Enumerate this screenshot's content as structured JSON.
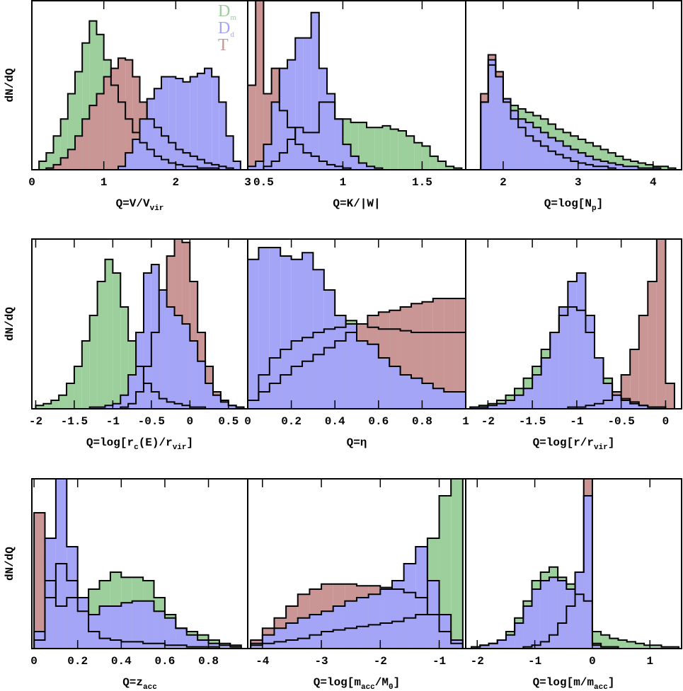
{
  "chart_data": [
    {
      "type": "histogram",
      "xlabel": [
        "Q=V/V",
        "vir"
      ],
      "ylabel": "dN/dQ",
      "legend": "upper right",
      "xlim": [
        0,
        3
      ],
      "ylim": [
        0,
        100
      ],
      "xticks": [
        0,
        1,
        2,
        3
      ],
      "bins": [
        0.1,
        0.2,
        0.3,
        0.4,
        0.5,
        0.6,
        0.7,
        0.8,
        0.9,
        1.0,
        1.1,
        1.2,
        1.3,
        1.4,
        1.5,
        1.6,
        1.7,
        1.8,
        1.9,
        2.0,
        2.1,
        2.2,
        2.3,
        2.4,
        2.5,
        2.6,
        2.7,
        2.8,
        2.9
      ],
      "series": [
        {
          "name": [
            "D",
            "m"
          ],
          "color": "#9ccf9c",
          "values": [
            5,
            10,
            20,
            30,
            45,
            58,
            75,
            88,
            80,
            65,
            50,
            40,
            30,
            22,
            16,
            12,
            8,
            6,
            4,
            3,
            2,
            2,
            1,
            1,
            1,
            0,
            0,
            0
          ]
        },
        {
          "name": [
            "D",
            "d"
          ],
          "color": "#a5a5f7",
          "values": [
            0,
            0,
            0,
            0,
            0,
            0,
            0,
            0,
            0,
            0,
            0,
            2,
            10,
            18,
            30,
            42,
            48,
            55,
            55,
            54,
            52,
            55,
            57,
            60,
            55,
            40,
            20,
            5
          ]
        },
        {
          "name": [
            "T"
          ],
          "color": "#c99595",
          "values": [
            0,
            1,
            3,
            7,
            12,
            20,
            30,
            38,
            45,
            55,
            60,
            66,
            65,
            55,
            40,
            30,
            25,
            20,
            16,
            12,
            10,
            8,
            6,
            4,
            3,
            2,
            1,
            0
          ]
        }
      ]
    },
    {
      "type": "histogram",
      "xlabel": [
        "Q=K/|W|"
      ],
      "xlim": [
        0.4,
        1.775
      ],
      "ylim": [
        0,
        100
      ],
      "xticks": [
        0.5,
        1,
        1.5
      ],
      "bins": [
        0.4,
        0.45,
        0.5,
        0.55,
        0.6,
        0.65,
        0.7,
        0.75,
        0.8,
        0.85,
        0.9,
        0.95,
        1.0,
        1.05,
        1.1,
        1.15,
        1.2,
        1.25,
        1.3,
        1.35,
        1.4,
        1.45,
        1.5,
        1.55,
        1.6,
        1.65,
        1.7,
        1.75
      ],
      "series": [
        {
          "color": "#9ccf9c",
          "values": [
            0,
            0,
            2,
            5,
            10,
            18,
            25,
            22,
            22,
            40,
            40,
            30,
            30,
            28,
            28,
            25,
            25,
            26,
            24,
            23,
            20,
            16,
            14,
            8,
            5,
            2,
            1
          ]
        },
        {
          "color": "#a5a5f7",
          "values": [
            2,
            5,
            15,
            40,
            60,
            65,
            78,
            78,
            93,
            60,
            45,
            30,
            15,
            8,
            4,
            2,
            1,
            0,
            0,
            0,
            0,
            0,
            0,
            0,
            0,
            0,
            0
          ]
        },
        {
          "color": "#c99595",
          "values": [
            50,
            100,
            45,
            60,
            35,
            25,
            15,
            10,
            8,
            5,
            3,
            2,
            1,
            0,
            0,
            0,
            0,
            0,
            0,
            0,
            0,
            0,
            0,
            0,
            0,
            0,
            0
          ]
        }
      ]
    },
    {
      "type": "histogram",
      "xlabel": [
        "Q=log[N",
        "p",
        "]"
      ],
      "xlim": [
        1.5,
        4.38
      ],
      "ylim": [
        0,
        100
      ],
      "xticks": [
        2,
        3,
        4
      ],
      "bins": [
        1.7,
        1.8,
        1.9,
        2.0,
        2.1,
        2.2,
        2.3,
        2.4,
        2.5,
        2.6,
        2.7,
        2.8,
        2.9,
        3.0,
        3.1,
        3.2,
        3.3,
        3.4,
        3.5,
        3.6,
        3.7,
        3.8,
        3.9,
        4.0,
        4.1,
        4.2,
        4.3
      ],
      "series": [
        {
          "color": "#9ccf9c",
          "values": [
            40,
            62,
            55,
            42,
            38,
            36,
            34,
            32,
            30,
            27,
            24,
            22,
            20,
            18,
            16,
            14,
            12,
            10,
            8,
            6,
            5,
            4,
            3,
            2,
            2,
            1
          ]
        },
        {
          "color": "#a5a5f7",
          "values": [
            40,
            65,
            55,
            42,
            35,
            30,
            28,
            25,
            22,
            19,
            17,
            14,
            12,
            10,
            8,
            6,
            5,
            4,
            3,
            2,
            2,
            1,
            1,
            1,
            0,
            0
          ]
        },
        {
          "color": "#c99595",
          "values": [
            45,
            68,
            58,
            40,
            30,
            25,
            20,
            17,
            14,
            11,
            9,
            7,
            5,
            4,
            3,
            2,
            2,
            1,
            0,
            0,
            0,
            0,
            0,
            0,
            0,
            0
          ]
        }
      ]
    },
    {
      "type": "histogram",
      "xlabel": [
        "Q=log[r",
        "c",
        "(E)/r",
        "vir",
        "]"
      ],
      "ylabel": "dN/dQ",
      "xlim": [
        -2.05,
        0.75
      ],
      "ylim": [
        0,
        100
      ],
      "xticks": [
        -2,
        -1.5,
        -1,
        -0.5,
        0,
        0.5
      ],
      "bins": [
        -2.0,
        -1.9,
        -1.8,
        -1.7,
        -1.6,
        -1.5,
        -1.4,
        -1.3,
        -1.2,
        -1.1,
        -1.0,
        -0.9,
        -0.8,
        -0.7,
        -0.6,
        -0.5,
        -0.4,
        -0.3,
        -0.2,
        -0.1,
        0,
        0.1,
        0.2,
        0.3,
        0.4,
        0.5,
        0.6,
        0.7
      ],
      "series": [
        {
          "color": "#9ccf9c",
          "values": [
            2,
            3,
            5,
            8,
            15,
            25,
            40,
            55,
            75,
            88,
            80,
            60,
            40,
            25,
            15,
            10,
            6,
            4,
            3,
            2,
            1,
            1,
            0,
            0,
            0,
            0,
            0
          ]
        },
        {
          "color": "#a5a5f7",
          "values": [
            0,
            0,
            0,
            0,
            0,
            0,
            0,
            1,
            1,
            2,
            3,
            8,
            20,
            45,
            80,
            85,
            70,
            60,
            55,
            50,
            40,
            28,
            15,
            8,
            4,
            2,
            1
          ]
        },
        {
          "color": "#c99595",
          "values": [
            0,
            0,
            0,
            0,
            0,
            0,
            0,
            0,
            0,
            0,
            0,
            1,
            3,
            10,
            25,
            45,
            70,
            90,
            100,
            98,
            75,
            45,
            25,
            10,
            5,
            2,
            1
          ]
        }
      ]
    },
    {
      "type": "histogram",
      "xlabel": [
        "Q=η"
      ],
      "xlim": [
        0,
        1
      ],
      "ylim": [
        0,
        100
      ],
      "xticks": [
        0,
        0.2,
        0.4,
        0.6,
        0.8,
        1
      ],
      "bins": [
        0,
        0.05,
        0.1,
        0.15,
        0.2,
        0.25,
        0.3,
        0.35,
        0.4,
        0.45,
        0.5,
        0.55,
        0.6,
        0.65,
        0.7,
        0.75,
        0.8,
        0.85,
        0.9,
        0.95,
        1
      ],
      "series": [
        {
          "color": "#9ccf9c",
          "values": [
            5,
            20,
            30,
            35,
            40,
            42,
            45,
            47,
            48,
            52,
            50,
            48,
            47,
            47,
            46,
            45,
            45,
            45,
            45,
            45
          ]
        },
        {
          "color": "#a5a5f7",
          "values": [
            88,
            95,
            95,
            90,
            88,
            92,
            82,
            70,
            55,
            50,
            40,
            38,
            30,
            25,
            20,
            18,
            15,
            12,
            10,
            10
          ]
        },
        {
          "color": "#c99595",
          "values": [
            5,
            10,
            15,
            20,
            25,
            28,
            32,
            36,
            40,
            45,
            50,
            55,
            57,
            58,
            60,
            62,
            63,
            65,
            65,
            65
          ]
        }
      ]
    },
    {
      "type": "histogram",
      "xlabel": [
        "Q=log[r/r",
        "vir",
        "]"
      ],
      "xlim": [
        -2.25,
        0.18
      ],
      "ylim": [
        0,
        100
      ],
      "xticks": [
        -2,
        -1.5,
        -1,
        -0.5,
        0
      ],
      "bins": [
        -2.2,
        -2.1,
        -2.0,
        -1.9,
        -1.8,
        -1.7,
        -1.6,
        -1.5,
        -1.4,
        -1.3,
        -1.2,
        -1.1,
        -1.0,
        -0.9,
        -0.8,
        -0.7,
        -0.6,
        -0.5,
        -0.4,
        -0.3,
        -0.2,
        -0.1,
        0,
        0.1
      ],
      "series": [
        {
          "color": "#9ccf9c",
          "values": [
            1,
            2,
            3,
            5,
            8,
            12,
            18,
            25,
            35,
            45,
            55,
            60,
            58,
            45,
            30,
            18,
            10,
            6,
            4,
            2,
            1,
            1,
            0
          ]
        },
        {
          "color": "#a5a5f7",
          "values": [
            1,
            1,
            2,
            3,
            5,
            8,
            12,
            20,
            30,
            45,
            60,
            75,
            80,
            55,
            30,
            15,
            8,
            5,
            3,
            2,
            1,
            1,
            0
          ]
        },
        {
          "color": "#c99595",
          "values": [
            0,
            0,
            0,
            0,
            0,
            0,
            0,
            0,
            0,
            0,
            0,
            1,
            1,
            2,
            3,
            5,
            10,
            20,
            35,
            55,
            75,
            100,
            15
          ]
        }
      ]
    },
    {
      "type": "histogram",
      "xlabel": [
        "Q=z",
        "acc"
      ],
      "ylabel": "dN/dQ",
      "xlim": [
        -0.01,
        0.98
      ],
      "ylim": [
        0,
        100
      ],
      "xticks": [
        0,
        0.2,
        0.4,
        0.6,
        0.8
      ],
      "bins": [
        0,
        0.05,
        0.1,
        0.15,
        0.2,
        0.25,
        0.3,
        0.35,
        0.4,
        0.45,
        0.5,
        0.55,
        0.6,
        0.65,
        0.7,
        0.75,
        0.8,
        0.85,
        0.9,
        0.95
      ],
      "series": [
        {
          "color": "#9ccf9c",
          "values": [
            5,
            30,
            50,
            40,
            30,
            35,
            40,
            45,
            42,
            42,
            40,
            30,
            20,
            12,
            10,
            8,
            5,
            3,
            2
          ]
        },
        {
          "color": "#a5a5f7",
          "values": [
            10,
            65,
            100,
            60,
            30,
            20,
            25,
            25,
            27,
            28,
            28,
            22,
            18,
            12,
            8,
            5,
            3,
            2,
            1
          ]
        },
        {
          "color": "#c99595",
          "values": [
            80,
            40,
            25,
            30,
            22,
            10,
            6,
            5,
            4,
            4,
            3,
            3,
            2,
            2,
            1,
            1,
            1,
            0,
            0
          ]
        }
      ]
    },
    {
      "type": "histogram",
      "xlabel": [
        "Q=log[m",
        "acc",
        "/M",
        "0",
        "]"
      ],
      "xlim": [
        -4.25,
        -0.55
      ],
      "ylim": [
        0,
        100
      ],
      "xticks": [
        -4,
        -3,
        -2,
        -1
      ],
      "bins": [
        -4.2,
        -4.0,
        -3.8,
        -3.6,
        -3.4,
        -3.2,
        -3.0,
        -2.8,
        -2.6,
        -2.4,
        -2.2,
        -2.0,
        -1.8,
        -1.6,
        -1.4,
        -1.2,
        -1.0,
        -0.8,
        -0.6
      ],
      "series": [
        {
          "color": "#9ccf9c",
          "values": [
            2,
            3,
            4,
            5,
            6,
            8,
            10,
            11,
            12,
            13,
            14,
            15,
            16,
            18,
            20,
            65,
            90,
            100
          ]
        },
        {
          "color": "#a5a5f7",
          "values": [
            3,
            8,
            12,
            15,
            18,
            20,
            22,
            25,
            28,
            30,
            32,
            35,
            40,
            50,
            60,
            40,
            20,
            5
          ]
        },
        {
          "color": "#c99595",
          "values": [
            5,
            12,
            18,
            25,
            32,
            35,
            38,
            38,
            38,
            37,
            37,
            36,
            35,
            33,
            30,
            20,
            10,
            3
          ]
        }
      ]
    },
    {
      "type": "histogram",
      "xlabel": [
        "Q=log[m/m",
        "acc",
        "]"
      ],
      "xlim": [
        -2.2,
        1.55
      ],
      "ylim": [
        0,
        100
      ],
      "xticks": [
        -2,
        -1,
        0,
        1
      ],
      "bins": [
        -2.1,
        -1.95,
        -1.8,
        -1.65,
        -1.5,
        -1.35,
        -1.2,
        -1.05,
        -0.9,
        -0.75,
        -0.6,
        -0.45,
        -0.3,
        -0.15,
        0,
        0.15,
        0.3,
        0.45,
        0.6,
        0.75,
        0.9,
        1.05,
        1.2,
        1.35,
        1.5
      ],
      "series": [
        {
          "color": "#9ccf9c",
          "values": [
            1,
            2,
            3,
            5,
            10,
            18,
            28,
            40,
            45,
            48,
            42,
            38,
            32,
            28,
            10,
            8,
            6,
            5,
            4,
            3,
            2,
            2,
            1,
            1
          ]
        },
        {
          "color": "#a5a5f7",
          "values": [
            1,
            2,
            3,
            5,
            8,
            15,
            25,
            35,
            40,
            42,
            40,
            35,
            45,
            90,
            2,
            1,
            1,
            0,
            0,
            0,
            0,
            0,
            0,
            0
          ]
        },
        {
          "color": "#c99595",
          "values": [
            0,
            0,
            0,
            0,
            0,
            0,
            1,
            2,
            4,
            8,
            15,
            25,
            45,
            100,
            3,
            1,
            1,
            0,
            0,
            0,
            0,
            0,
            0,
            0
          ]
        }
      ]
    }
  ]
}
